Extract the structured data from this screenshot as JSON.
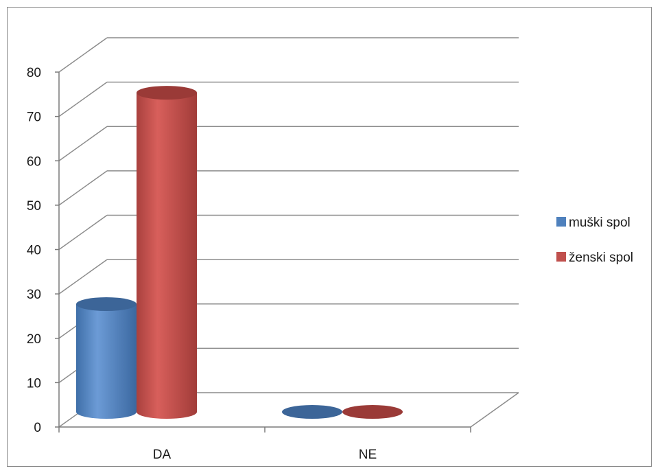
{
  "chart_data": {
    "type": "bar",
    "title": "",
    "xlabel": "",
    "ylabel": "",
    "categories": [
      "DA",
      "NE"
    ],
    "series": [
      {
        "name": "muški spol",
        "values": [
          26,
          0
        ],
        "color": "#4f81bd"
      },
      {
        "name": "ženski spol",
        "values": [
          77,
          0
        ],
        "color": "#c0504d"
      }
    ],
    "ylim": [
      0,
      80
    ],
    "yticks": [
      0,
      10,
      20,
      30,
      40,
      50,
      60,
      70,
      80
    ],
    "grid": true,
    "legend_position": "right",
    "style": "3d-cylinder"
  }
}
